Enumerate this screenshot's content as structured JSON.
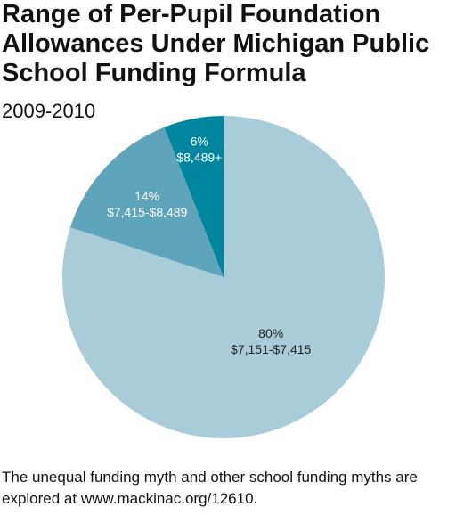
{
  "chart_data": {
    "type": "pie",
    "title": "Range of Per-Pupil Foundation Allowances Under Michigan Public School Funding Formula",
    "subtitle": "2009-2010",
    "categories": [
      "$7,151-$7,415",
      "$7,415-$8,489",
      "$8,489+"
    ],
    "values": [
      80,
      14,
      6
    ],
    "value_labels": [
      "80%",
      "14%",
      "6%"
    ],
    "colors": [
      "#a9cdd8",
      "#5ea5bc",
      "#00879f"
    ],
    "note": "The unequal funding myth and other school funding myths are explored at www.mackinac.org/12610."
  }
}
